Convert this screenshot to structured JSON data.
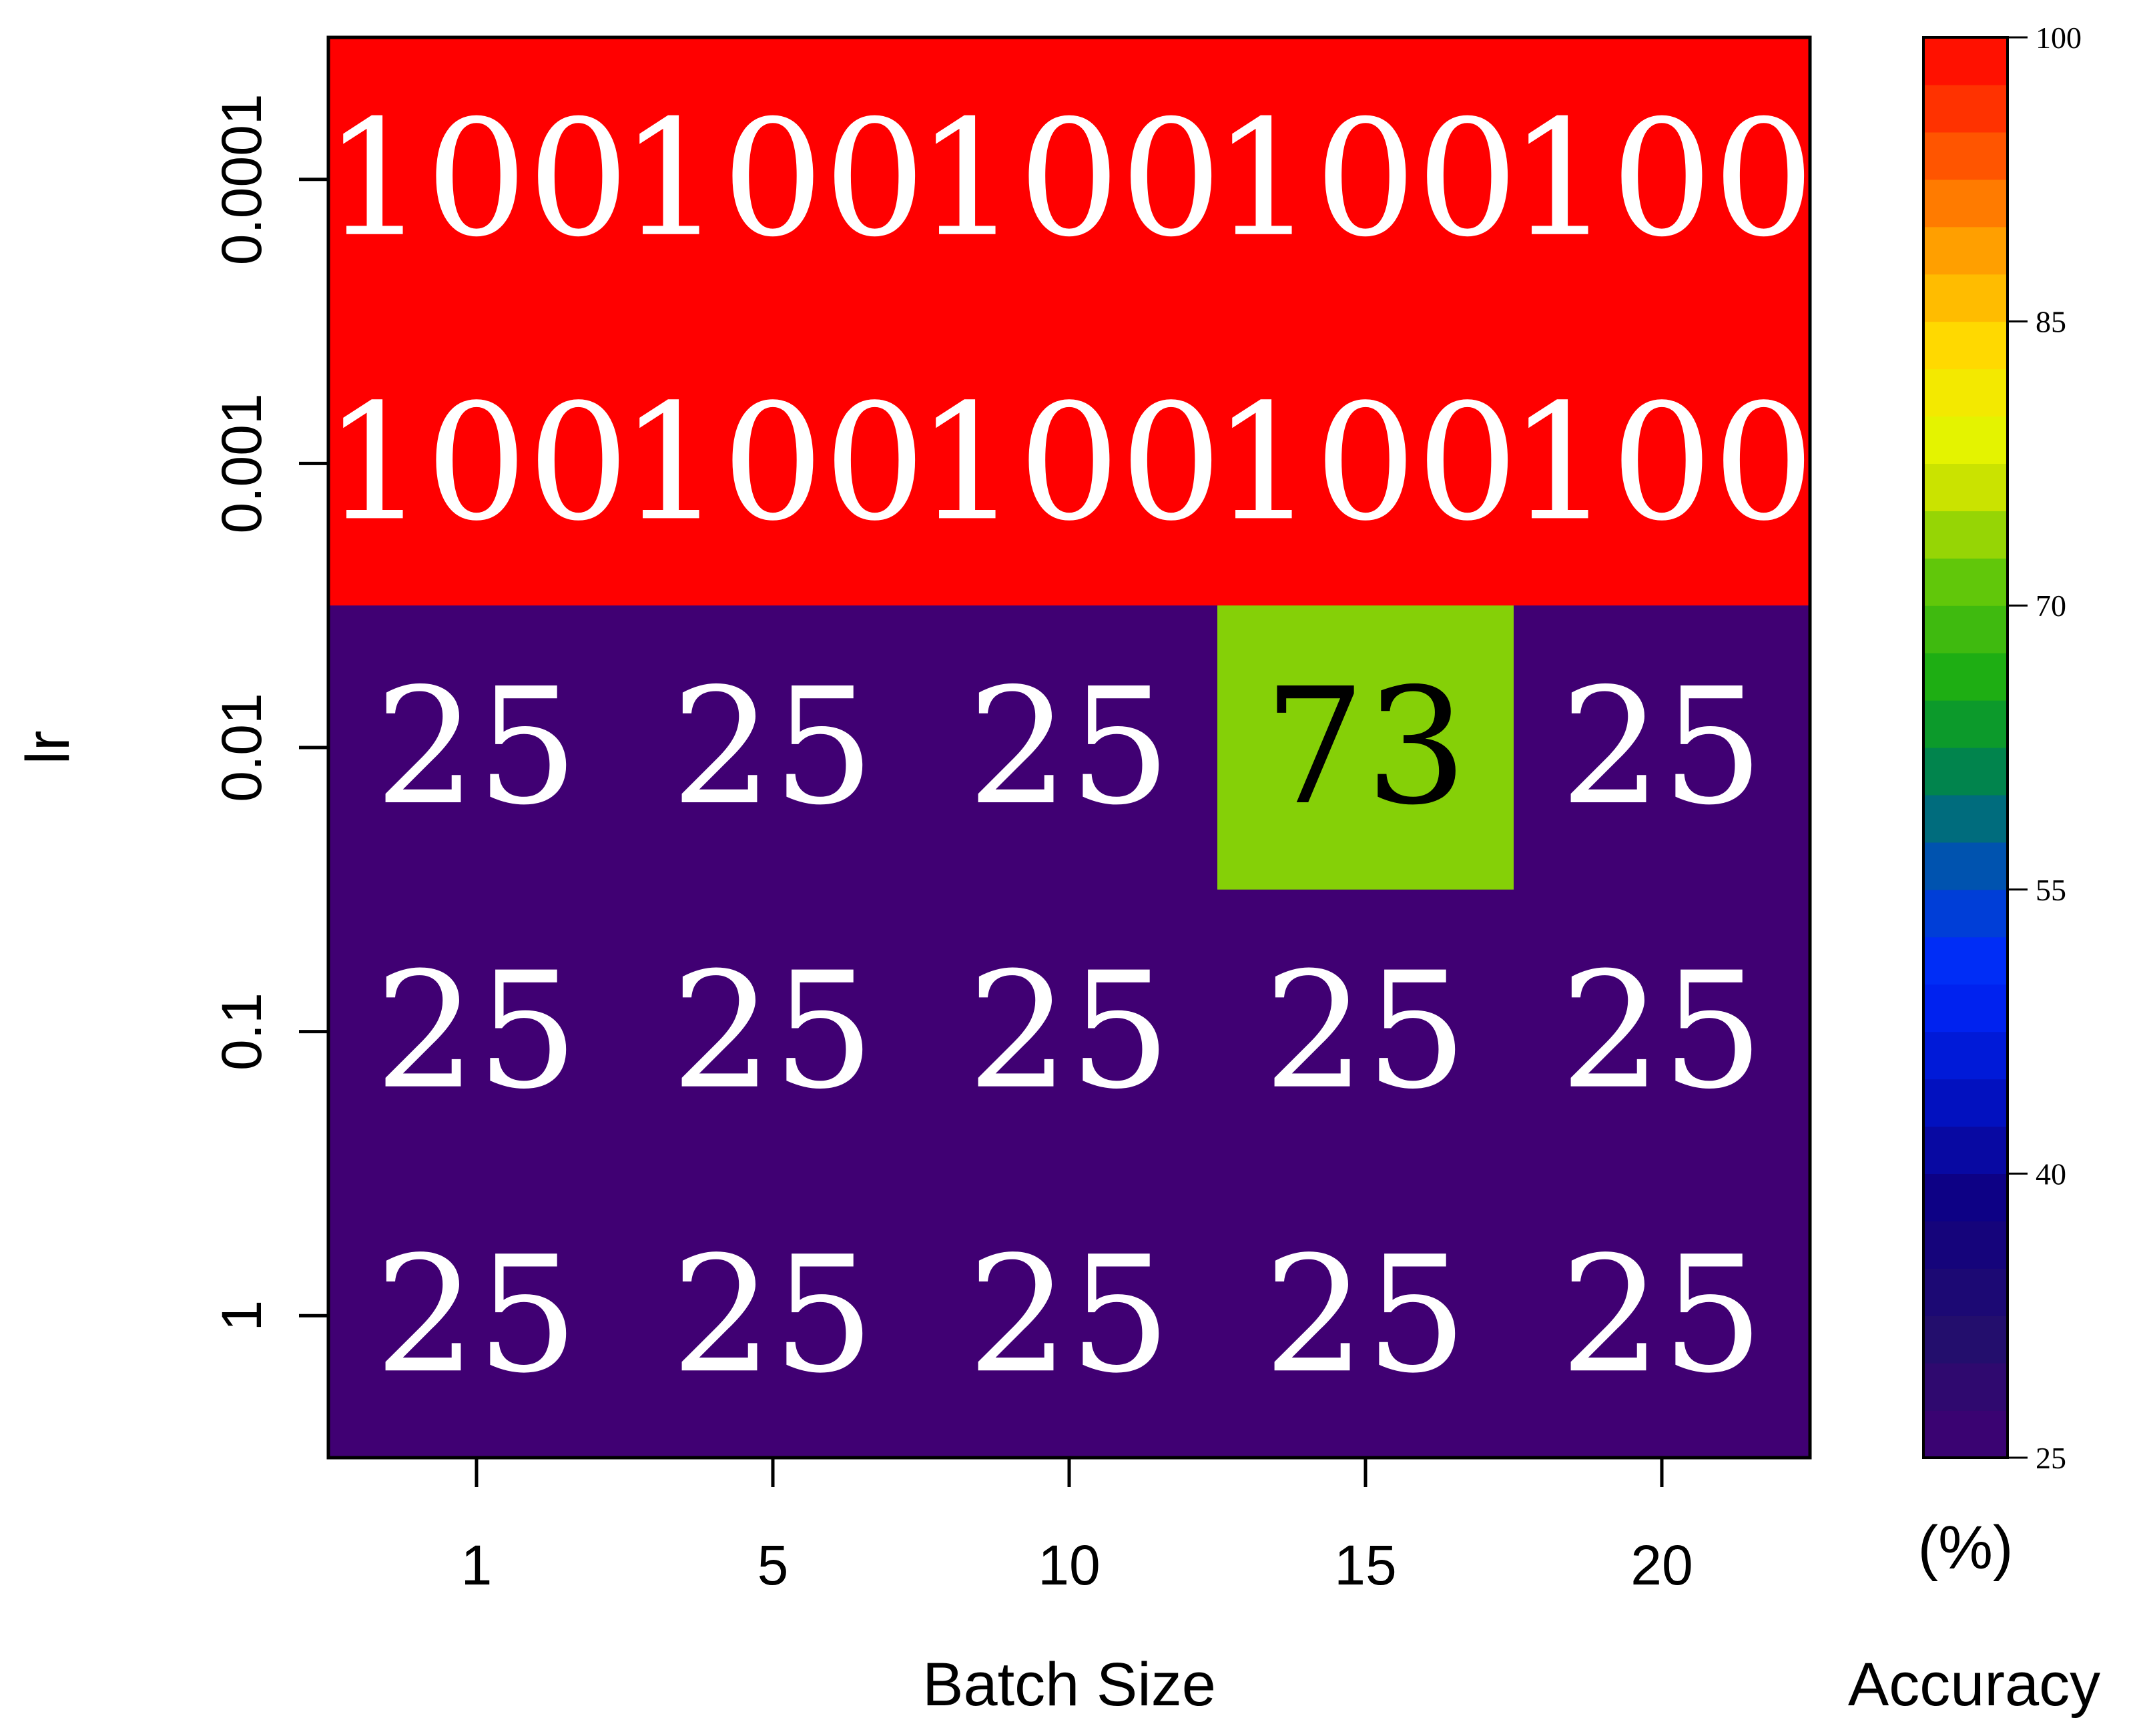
{
  "chart_data": {
    "type": "heatmap",
    "xlabel": "Batch Size",
    "ylabel": "lr",
    "x_categories": [
      "1",
      "5",
      "10",
      "15",
      "20"
    ],
    "y_categories": [
      "0.0001",
      "0.001",
      "0.01",
      "0.1",
      "1"
    ],
    "values": [
      [
        100,
        100,
        100,
        100,
        100
      ],
      [
        100,
        100,
        100,
        100,
        100
      ],
      [
        25,
        25,
        25,
        73,
        25
      ],
      [
        25,
        25,
        25,
        25,
        25
      ],
      [
        25,
        25,
        25,
        25,
        25
      ]
    ],
    "colorbar": {
      "label": "Accuracy",
      "unit": "(%)",
      "range": [
        25,
        100
      ],
      "ticks": [
        25,
        40,
        55,
        70,
        85,
        100
      ]
    }
  }
}
